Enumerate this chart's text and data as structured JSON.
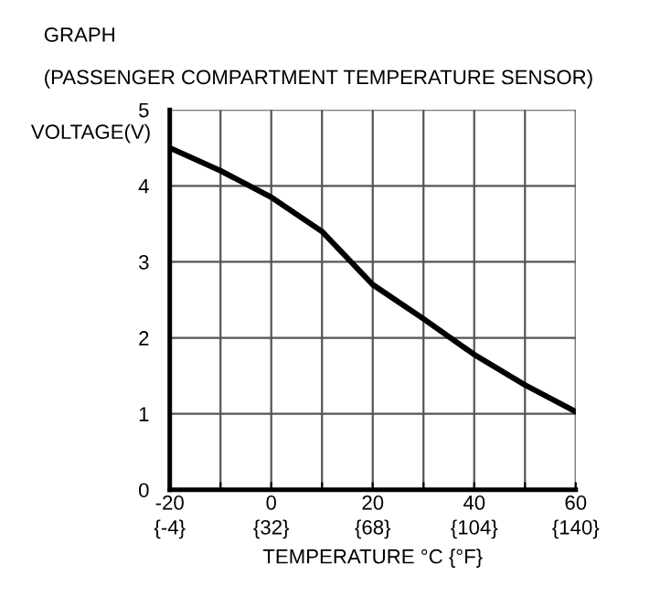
{
  "chart_data": {
    "type": "line",
    "title": "GRAPH",
    "subtitle": "(PASSENGER COMPARTMENT TEMPERATURE SENSOR)",
    "xlabel": "TEMPERATURE °C {°F}",
    "ylabel": "VOLTAGE(V)",
    "x": [
      -20,
      -10,
      0,
      10,
      20,
      30,
      40,
      50,
      60
    ],
    "series": [
      {
        "color": "#000000",
        "values": [
          4.5,
          4.2,
          3.85,
          3.4,
          2.7,
          2.25,
          1.78,
          1.38,
          1.03
        ]
      }
    ],
    "xlim": [
      -20,
      60
    ],
    "ylim": [
      0,
      5
    ],
    "xticks": [
      -20,
      {
        "value": -10,
        "label": null
      },
      0,
      {
        "value": 10,
        "label": null
      },
      20,
      {
        "value": 30,
        "label": null
      },
      40,
      {
        "value": 50,
        "label": null
      },
      60
    ],
    "x2lim": [
      -4,
      140
    ],
    "x2ticks": [
      {
        "value": -4,
        "label": "{-4}"
      },
      {
        "value": 32,
        "label": "{32}"
      },
      {
        "value": 68,
        "label": "{68}"
      },
      {
        "value": 104,
        "label": "{104}"
      },
      {
        "value": 140,
        "label": "{140}"
      }
    ],
    "yticks": [
      0,
      1,
      2,
      3,
      4,
      5
    ],
    "grid": true,
    "marker": "none",
    "line_style": "solid",
    "legend": false
  }
}
